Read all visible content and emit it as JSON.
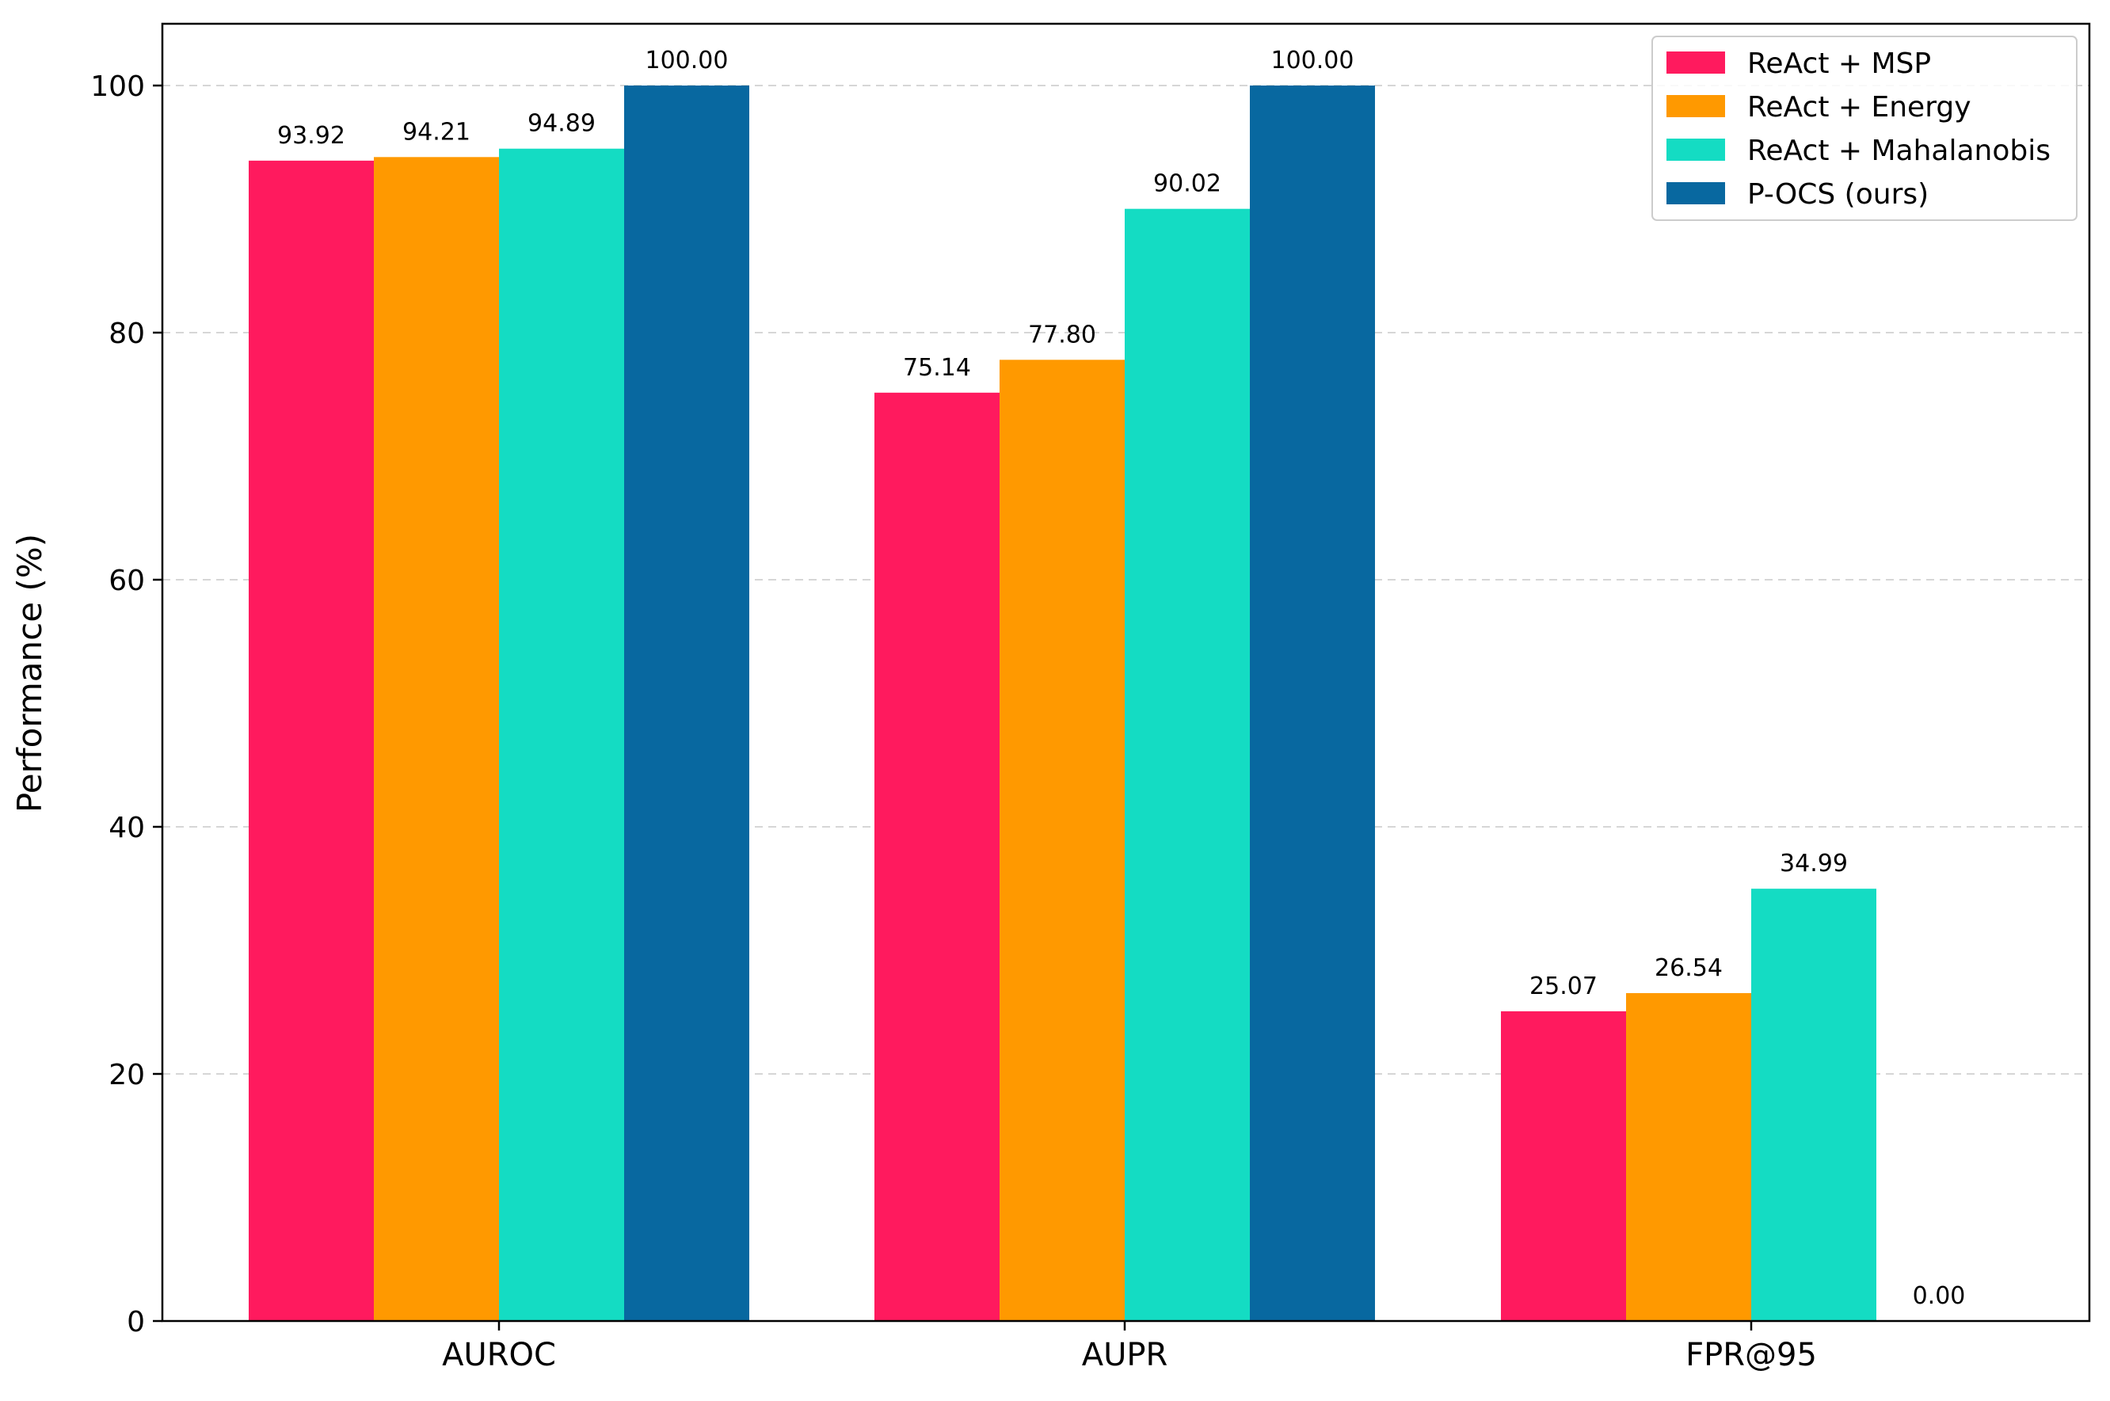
{
  "chart_data": {
    "type": "bar",
    "title": "",
    "xlabel": "",
    "ylabel": "Performance (%)",
    "ylim": [
      0,
      105
    ],
    "yticks": [
      0,
      20,
      40,
      60,
      80,
      100
    ],
    "grid": "horizontal dashed",
    "legend_position": "top-right",
    "categories": [
      "AUROC",
      "AUPR",
      "FPR@95"
    ],
    "series": [
      {
        "name": "ReAct + MSP",
        "color": "#ff1a5e",
        "values": [
          93.92,
          75.14,
          25.07
        ],
        "labels": [
          "93.92",
          "75.14",
          "25.07"
        ]
      },
      {
        "name": "ReAct + Energy",
        "color": "#ff9900",
        "values": [
          94.21,
          77.8,
          26.54
        ],
        "labels": [
          "94.21",
          "77.80",
          "26.54"
        ]
      },
      {
        "name": "ReAct + Mahalanobis",
        "color": "#14dcc3",
        "values": [
          94.89,
          90.02,
          34.99
        ],
        "labels": [
          "94.89",
          "90.02",
          "34.99"
        ]
      },
      {
        "name": "P-OCS (ours)",
        "color": "#0868a0",
        "values": [
          100.0,
          100.0,
          0.0
        ],
        "labels": [
          "100.00",
          "100.00",
          "0.00"
        ]
      }
    ]
  }
}
